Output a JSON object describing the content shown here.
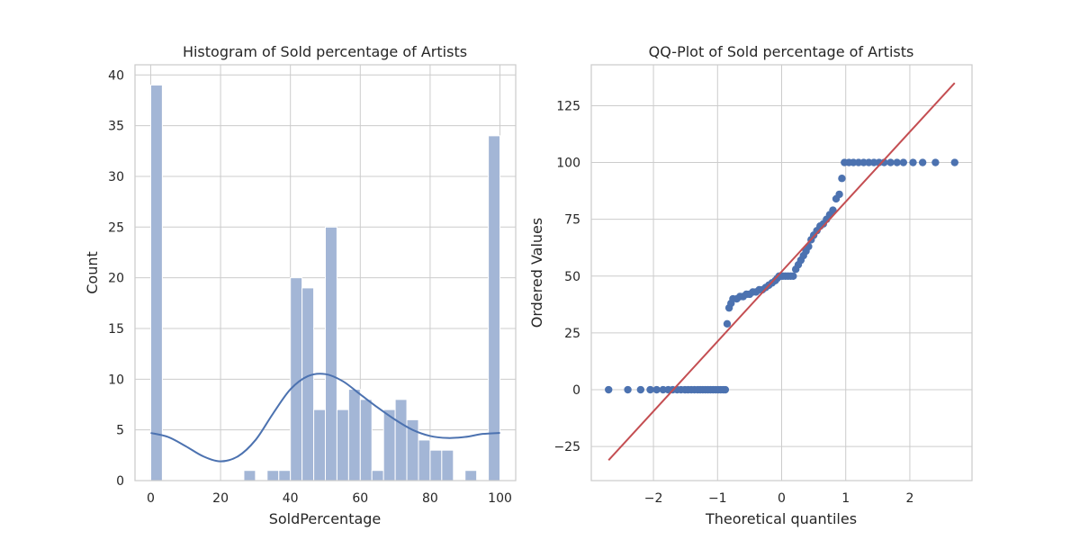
{
  "chart_data": [
    {
      "type": "bar",
      "subtype": "histogram",
      "title": "Histogram of Sold percentage of Artists",
      "xlabel": "SoldPercentage",
      "ylabel": "Count",
      "xlim": [
        -4.5,
        104.5
      ],
      "ylim": [
        0,
        41
      ],
      "xticks": [
        0,
        20,
        40,
        60,
        80,
        100
      ],
      "yticks": [
        0,
        5,
        10,
        15,
        20,
        25,
        30,
        35,
        40
      ],
      "grid": true,
      "bar_color": "#a3b6d6",
      "bins": [
        {
          "x0": 0,
          "x1": 3.33,
          "count": 39
        },
        {
          "x0": 26.67,
          "x1": 30,
          "count": 1
        },
        {
          "x0": 33.33,
          "x1": 36.67,
          "count": 1
        },
        {
          "x0": 36.67,
          "x1": 40,
          "count": 1
        },
        {
          "x0": 40,
          "x1": 43.33,
          "count": 20
        },
        {
          "x0": 43.33,
          "x1": 46.67,
          "count": 19
        },
        {
          "x0": 46.67,
          "x1": 50,
          "count": 7
        },
        {
          "x0": 50,
          "x1": 53.33,
          "count": 25
        },
        {
          "x0": 53.33,
          "x1": 56.67,
          "count": 7
        },
        {
          "x0": 56.67,
          "x1": 60,
          "count": 9
        },
        {
          "x0": 60,
          "x1": 63.33,
          "count": 8
        },
        {
          "x0": 63.33,
          "x1": 66.67,
          "count": 1
        },
        {
          "x0": 66.67,
          "x1": 70,
          "count": 7
        },
        {
          "x0": 70,
          "x1": 73.33,
          "count": 8
        },
        {
          "x0": 73.33,
          "x1": 76.67,
          "count": 6
        },
        {
          "x0": 76.67,
          "x1": 80,
          "count": 4
        },
        {
          "x0": 80,
          "x1": 83.33,
          "count": 3
        },
        {
          "x0": 83.33,
          "x1": 86.67,
          "count": 3
        },
        {
          "x0": 90,
          "x1": 93.33,
          "count": 1
        },
        {
          "x0": 96.67,
          "x1": 100,
          "count": 34
        }
      ],
      "kde": {
        "color": "#4c72b0",
        "points": [
          [
            0,
            4.7
          ],
          [
            5,
            4.3
          ],
          [
            10,
            3.4
          ],
          [
            15,
            2.4
          ],
          [
            20,
            1.9
          ],
          [
            25,
            2.4
          ],
          [
            30,
            4.0
          ],
          [
            35,
            6.6
          ],
          [
            40,
            9.0
          ],
          [
            45,
            10.3
          ],
          [
            50,
            10.5
          ],
          [
            55,
            9.8
          ],
          [
            60,
            8.5
          ],
          [
            65,
            7.2
          ],
          [
            70,
            6.0
          ],
          [
            75,
            5.0
          ],
          [
            80,
            4.4
          ],
          [
            85,
            4.2
          ],
          [
            90,
            4.3
          ],
          [
            95,
            4.6
          ],
          [
            100,
            4.7
          ]
        ]
      }
    },
    {
      "type": "scatter",
      "subtype": "qq-plot",
      "title": "QQ-Plot of Sold percentage of Artists",
      "xlabel": "Theoretical quantiles",
      "ylabel": "Ordered Values",
      "xlim": [
        -2.97,
        2.97
      ],
      "ylim": [
        -40,
        143
      ],
      "xticks": [
        -2,
        -1,
        0,
        1,
        2
      ],
      "yticks": [
        -25,
        0,
        25,
        50,
        75,
        100,
        125
      ],
      "grid": true,
      "point_color": "#4c72b0",
      "line_color": "#c44e52",
      "fit_line": {
        "x0": -2.7,
        "y0": -31,
        "x1": 2.7,
        "y1": 135
      },
      "points": [
        [
          -2.7,
          0
        ],
        [
          -2.4,
          0
        ],
        [
          -2.2,
          0
        ],
        [
          -2.05,
          0
        ],
        [
          -1.95,
          0
        ],
        [
          -1.85,
          0
        ],
        [
          -1.77,
          0
        ],
        [
          -1.7,
          0
        ],
        [
          -1.63,
          0
        ],
        [
          -1.57,
          0
        ],
        [
          -1.51,
          0
        ],
        [
          -1.46,
          0
        ],
        [
          -1.41,
          0
        ],
        [
          -1.36,
          0
        ],
        [
          -1.31,
          0
        ],
        [
          -1.27,
          0
        ],
        [
          -1.23,
          0
        ],
        [
          -1.19,
          0
        ],
        [
          -1.15,
          0
        ],
        [
          -1.11,
          0
        ],
        [
          -1.07,
          0
        ],
        [
          -1.03,
          0
        ],
        [
          -0.99,
          0
        ],
        [
          -0.95,
          0
        ],
        [
          -0.91,
          0
        ],
        [
          -0.88,
          0
        ],
        [
          -0.85,
          29
        ],
        [
          -0.82,
          36
        ],
        [
          -0.79,
          38
        ],
        [
          -0.76,
          40
        ],
        [
          -0.7,
          40
        ],
        [
          -0.65,
          41
        ],
        [
          -0.6,
          41
        ],
        [
          -0.55,
          42
        ],
        [
          -0.5,
          42
        ],
        [
          -0.45,
          43
        ],
        [
          -0.4,
          43
        ],
        [
          -0.35,
          44
        ],
        [
          -0.3,
          44
        ],
        [
          -0.25,
          45
        ],
        [
          -0.2,
          46
        ],
        [
          -0.15,
          47
        ],
        [
          -0.1,
          48
        ],
        [
          -0.07,
          49
        ],
        [
          -0.04,
          50
        ],
        [
          -0.01,
          50
        ],
        [
          0.02,
          50
        ],
        [
          0.06,
          50
        ],
        [
          0.1,
          50
        ],
        [
          0.14,
          50
        ],
        [
          0.18,
          50
        ],
        [
          0.22,
          53
        ],
        [
          0.26,
          55
        ],
        [
          0.3,
          57
        ],
        [
          0.34,
          59
        ],
        [
          0.38,
          61
        ],
        [
          0.42,
          63
        ],
        [
          0.46,
          66
        ],
        [
          0.5,
          68
        ],
        [
          0.55,
          70
        ],
        [
          0.6,
          72
        ],
        [
          0.65,
          73
        ],
        [
          0.7,
          75
        ],
        [
          0.75,
          77
        ],
        [
          0.8,
          79
        ],
        [
          0.85,
          84
        ],
        [
          0.9,
          86
        ],
        [
          0.94,
          93
        ],
        [
          0.98,
          100
        ],
        [
          1.05,
          100
        ],
        [
          1.12,
          100
        ],
        [
          1.2,
          100
        ],
        [
          1.28,
          100
        ],
        [
          1.36,
          100
        ],
        [
          1.44,
          100
        ],
        [
          1.52,
          100
        ],
        [
          1.6,
          100
        ],
        [
          1.7,
          100
        ],
        [
          1.8,
          100
        ],
        [
          1.9,
          100
        ],
        [
          2.05,
          100
        ],
        [
          2.2,
          100
        ],
        [
          2.4,
          100
        ],
        [
          2.7,
          100
        ]
      ]
    }
  ]
}
